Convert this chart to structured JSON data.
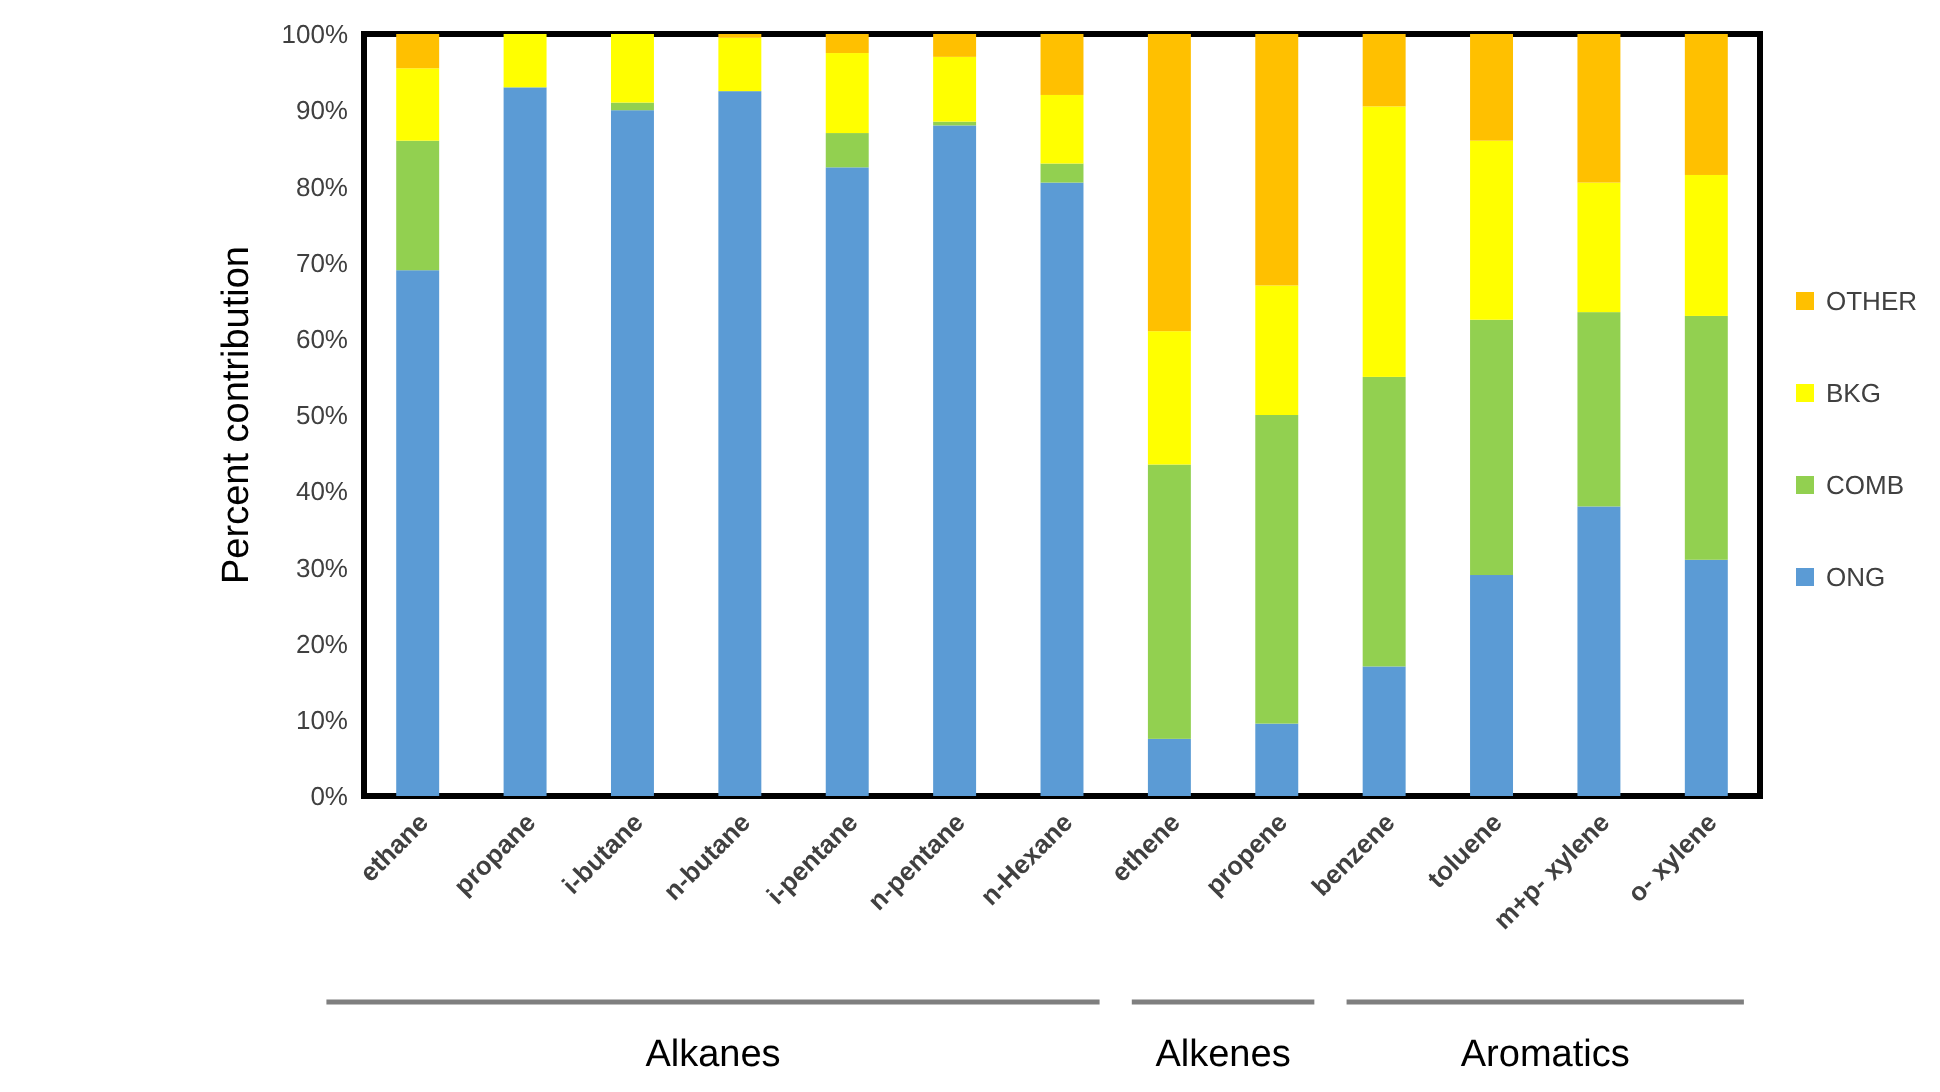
{
  "chart_data": {
    "type": "bar",
    "stacked": true,
    "ylabel": "Percent contribution",
    "legend": "right",
    "grid": false,
    "categories": [
      "ethane",
      "propane",
      "i-butane",
      "n-butane",
      "i-pentane",
      "n-pentane",
      "n-Hexane",
      "ethene",
      "propene",
      "benzene",
      "toluene",
      "m+p- xylene",
      "o- xylene"
    ],
    "series": [
      {
        "name": "ONG",
        "color": "#5b9bd5",
        "values": [
          69,
          93,
          90,
          92.5,
          82.5,
          88,
          80.5,
          7.5,
          9.5,
          17,
          29,
          38,
          31
        ]
      },
      {
        "name": "COMB",
        "color": "#92d050",
        "values": [
          17,
          0,
          1,
          0,
          4.5,
          0.5,
          2.5,
          36,
          40.5,
          38,
          33.5,
          25.5,
          32
        ]
      },
      {
        "name": "BKG",
        "color": "#ffff00",
        "values": [
          9.5,
          7,
          9,
          7,
          10.5,
          8.5,
          9,
          17.5,
          17,
          35.5,
          23.5,
          17,
          18.5
        ]
      },
      {
        "name": "OTHER",
        "color": "#ffc000",
        "values": [
          4.5,
          0,
          0,
          0.5,
          2.5,
          3,
          8,
          39,
          33,
          9.5,
          14,
          19.5,
          18.5
        ]
      }
    ],
    "ylim": [
      0,
      100
    ],
    "yticks": [
      {
        "value": 0,
        "label": "0%"
      },
      {
        "value": 10,
        "label": "10%"
      },
      {
        "value": 20,
        "label": "20%"
      },
      {
        "value": 30,
        "label": "30%"
      },
      {
        "value": 40,
        "label": "40%"
      },
      {
        "value": 50,
        "label": "50%"
      },
      {
        "value": 60,
        "label": "60%"
      },
      {
        "value": 70,
        "label": "70%"
      },
      {
        "value": 80,
        "label": "80%"
      },
      {
        "value": 90,
        "label": "90%"
      },
      {
        "value": 100,
        "label": "100%"
      }
    ],
    "annotations": [
      "Alkanes",
      "Alkenes",
      "Aromatics"
    ]
  }
}
